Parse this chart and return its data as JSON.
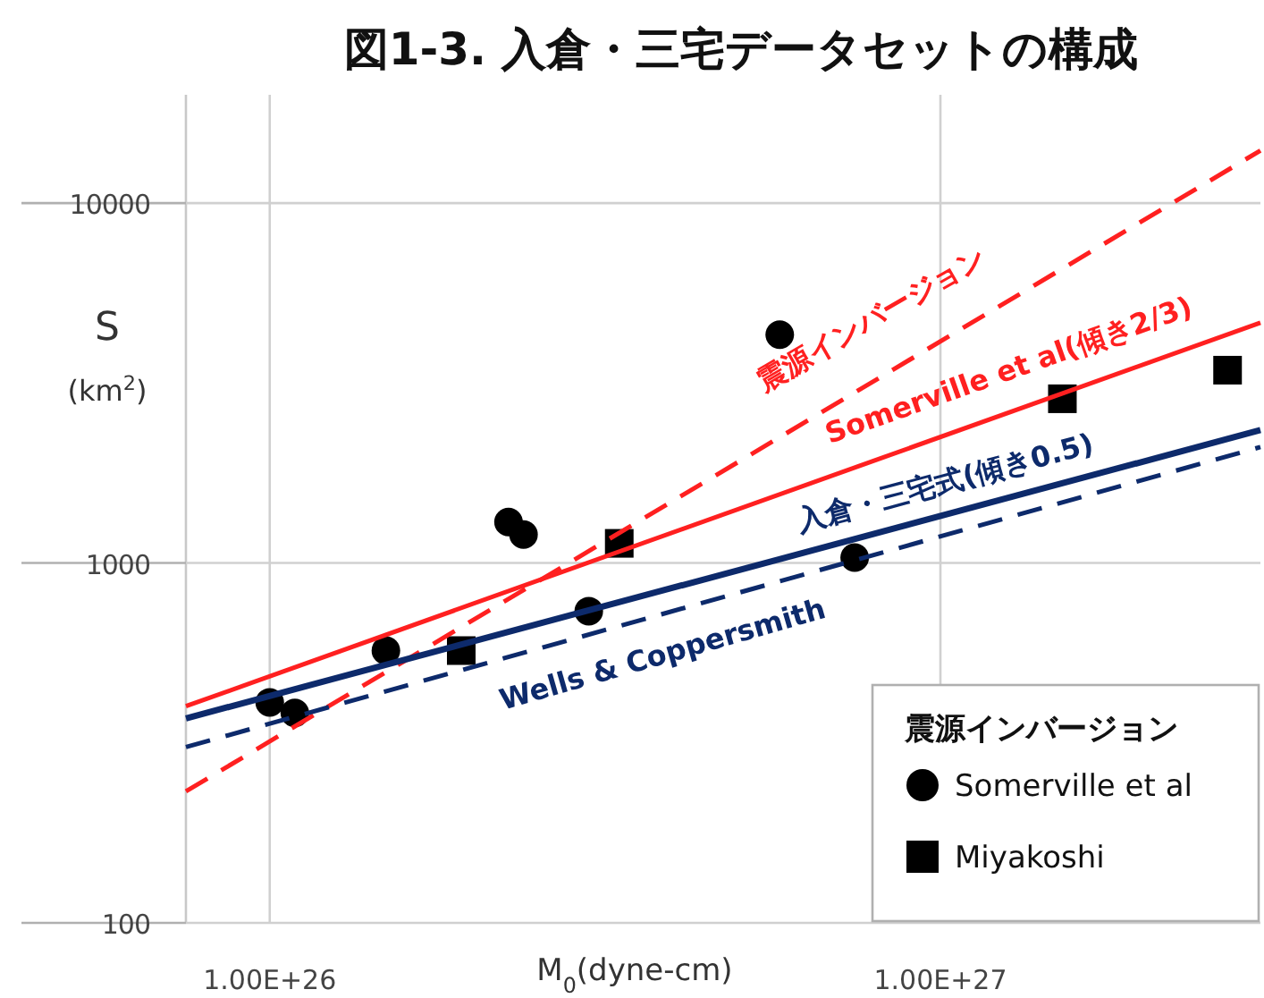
{
  "chart_data": {
    "type": "scatter",
    "title": "図1-3. 入倉・三宅データセットの構成",
    "xlabel": "M$_{0}$(dyne-cm)",
    "ylabel": "S (km$^{2}$)",
    "legend_title": "震源インバージョン",
    "log": "xy",
    "grid": true,
    "legend": "bottom right",
    "xlim": [
      7.5e+25,
      3e+27
    ],
    "ylim": [
      100,
      20000
    ],
    "xticks": [
      {
        "value": 1e+26,
        "label": "1.00E+26"
      },
      {
        "value": 1e+27,
        "label": "1.00E+27"
      }
    ],
    "yticks": [
      100,
      1000,
      10000
    ],
    "series": [
      {
        "name": "Somerville et al",
        "type": "scatter",
        "marker": "circle",
        "color": "#000000",
        "x": [
          1e+26,
          1.09e+26,
          1.49e+26,
          2.27e+26,
          2.39e+26,
          2.99e+26,
          5.76e+26,
          7.45e+26
        ],
        "values": [
          410,
          383,
          571,
          1300,
          1200,
          735,
          4310,
          1035
        ]
      },
      {
        "name": "Miyakoshi",
        "type": "scatter",
        "marker": "square",
        "color": "#000000",
        "x": [
          1.93e+26,
          3.32e+26,
          1.52e+27,
          2.68e+27
        ],
        "values": [
          571,
          1134,
          2860,
          3434
        ]
      },
      {
        "type": "line",
        "line_style": "dashed",
        "color": "#ff2020",
        "x": [
          7.5e+25,
          3e+27
        ],
        "values": [
          232,
          14000
        ]
      },
      {
        "type": "line",
        "line_style": "solid",
        "color": "#ff2020",
        "x": [
          7.5e+25,
          3e+27
        ],
        "values": [
          400,
          4650
        ]
      },
      {
        "type": "line",
        "line_style": "solid",
        "color": "#0d2a6b",
        "x": [
          7.5e+25,
          3e+27
        ],
        "values": [
          370,
          2340
        ]
      },
      {
        "type": "line",
        "line_style": "dashed",
        "color": "#0d2a6b",
        "x": [
          7.5e+25,
          3e+27
        ],
        "values": [
          308,
          2100
        ]
      }
    ],
    "annotations": [
      "震源インバージョン",
      "Somerville et al(傾き2/3)",
      "入倉・三宅式(傾き0.5)",
      "Wells & Coppersmith"
    ]
  }
}
